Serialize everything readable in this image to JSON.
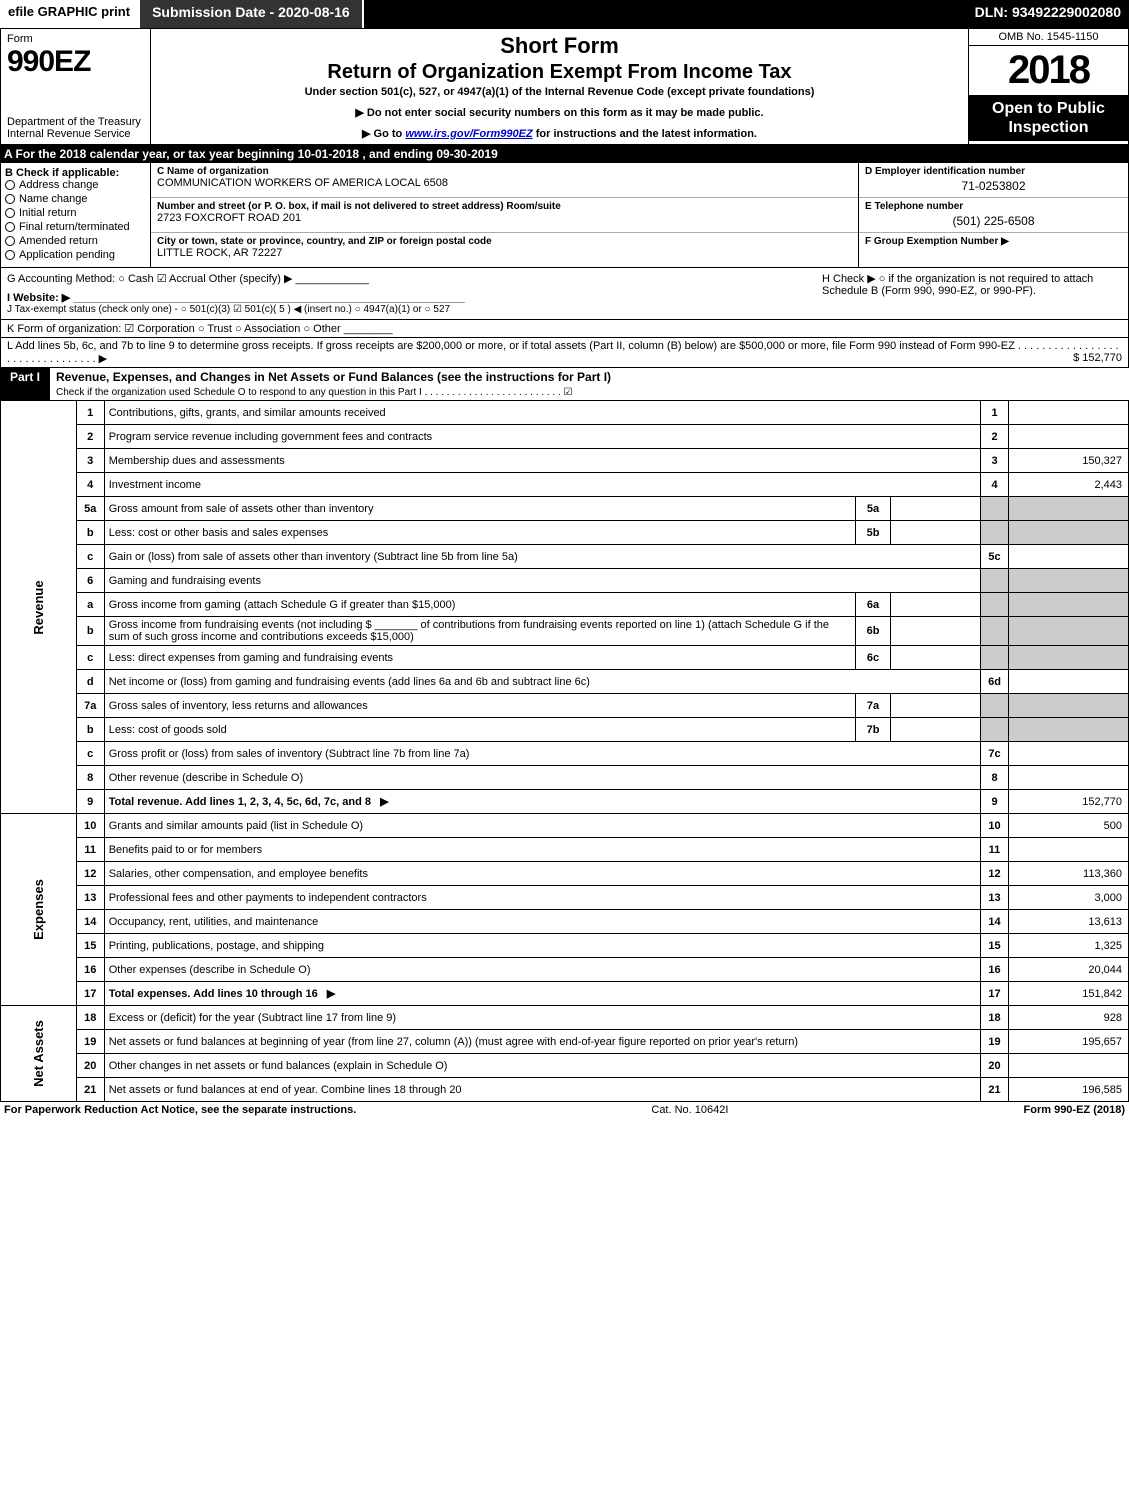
{
  "topbar": {
    "efile": "efile GRAPHIC print",
    "subdate": "Submission Date - 2020-08-16",
    "dln": "DLN: 93492229002080"
  },
  "header": {
    "form": "Form",
    "formno": "990EZ",
    "dept": "Department of the Treasury\nInternal Revenue Service",
    "short": "Short Form",
    "return": "Return of Organization Exempt From Income Tax",
    "under": "Under section 501(c), 527, or 4947(a)(1) of the Internal Revenue Code (except private foundations)",
    "note1": "▶ Do not enter social security numbers on this form as it may be made public.",
    "note2_a": "▶ Go to ",
    "note2_link": "www.irs.gov/Form990EZ",
    "note2_b": " for instructions and the latest information.",
    "omb": "OMB No. 1545-1150",
    "year": "2018",
    "open": "Open to Public Inspection"
  },
  "period": "A  For the 2018 calendar year, or tax year beginning 10-01-2018            , and ending 09-30-2019",
  "sectionB": {
    "title": "B  Check if applicable:",
    "items": [
      "Address change",
      "Name change",
      "Initial return",
      "Final return/terminated",
      "Amended return",
      "Application pending"
    ]
  },
  "sectionC": {
    "lblName": "C Name of organization",
    "name": "COMMUNICATION WORKERS OF AMERICA LOCAL 6508",
    "lblAddr": "Number and street (or P. O. box, if mail is not delivered to street address)        Room/suite",
    "addr": "2723 FOXCROFT ROAD 201",
    "lblCity": "City or town, state or province, country, and ZIP or foreign postal code",
    "city": "LITTLE ROCK, AR  72227"
  },
  "sectionD": {
    "lbl": "D Employer identification number",
    "val": "71-0253802"
  },
  "sectionE": {
    "lbl": "E Telephone number",
    "val": "(501) 225-6508"
  },
  "sectionF": {
    "lbl": "F Group Exemption Number  ▶",
    "val": ""
  },
  "lineG": "G Accounting Method:   ○ Cash   ☑ Accrual   Other (specify) ▶ ____________",
  "lineH": "H   Check ▶  ○  if the organization is not required to attach Schedule B (Form 990, 990-EZ, or 990-PF).",
  "lineI": "I Website: ▶ ________________________________________________________________",
  "lineJ": "J Tax-exempt status (check only one) -  ○ 501(c)(3)  ☑ 501(c)( 5 ) ◀ (insert no.)  ○ 4947(a)(1) or  ○ 527",
  "lineK": "K Form of organization:   ☑ Corporation   ○ Trust   ○ Association   ○ Other ________",
  "lineL": {
    "text": "L Add lines 5b, 6c, and 7b to line 9 to determine gross receipts. If gross receipts are $200,000 or more, or if total assets (Part II, column (B) below) are $500,000 or more, file Form 990 instead of Form 990-EZ  . . . . . . . . . . . . . . . . . . . . . . . . . . . . . . . .  ▶",
    "amount": "$ 152,770"
  },
  "part1": {
    "tag": "Part I",
    "title": "Revenue, Expenses, and Changes in Net Assets or Fund Balances (see the instructions for Part I)",
    "sub": "Check if the organization used Schedule O to respond to any question in this Part I . . . . . . . . . . . . . . . . . . . . . . . . . ☑"
  },
  "sections": {
    "revenue": "Revenue",
    "expenses": "Expenses",
    "netassets": "Net Assets"
  },
  "rows": [
    {
      "n": "1",
      "t": "Contributions, gifts, grants, and similar amounts received",
      "box": "1",
      "amt": ""
    },
    {
      "n": "2",
      "t": "Program service revenue including government fees and contracts",
      "box": "2",
      "amt": ""
    },
    {
      "n": "3",
      "t": "Membership dues and assessments",
      "box": "3",
      "amt": "150,327"
    },
    {
      "n": "4",
      "t": "Investment income",
      "box": "4",
      "amt": "2,443"
    },
    {
      "n": "5a",
      "t": "Gross amount from sale of assets other than inventory",
      "sub": "5a",
      "subamt": ""
    },
    {
      "n": "b",
      "t": "Less: cost or other basis and sales expenses",
      "sub": "5b",
      "subamt": ""
    },
    {
      "n": "c",
      "t": "Gain or (loss) from sale of assets other than inventory (Subtract line 5b from line 5a)",
      "box": "5c",
      "amt": ""
    },
    {
      "n": "6",
      "t": "Gaming and fundraising events",
      "head": true
    },
    {
      "n": "a",
      "t": "Gross income from gaming (attach Schedule G if greater than $15,000)",
      "sub": "6a",
      "subamt": ""
    },
    {
      "n": "b",
      "t": "Gross income from fundraising events (not including $ _______ of contributions from fundraising events reported on line 1) (attach Schedule G if the sum of such gross income and contributions exceeds $15,000)",
      "sub": "6b",
      "subamt": ""
    },
    {
      "n": "c",
      "t": "Less: direct expenses from gaming and fundraising events",
      "sub": "6c",
      "subamt": ""
    },
    {
      "n": "d",
      "t": "Net income or (loss) from gaming and fundraising events (add lines 6a and 6b and subtract line 6c)",
      "box": "6d",
      "amt": ""
    },
    {
      "n": "7a",
      "t": "Gross sales of inventory, less returns and allowances",
      "sub": "7a",
      "subamt": ""
    },
    {
      "n": "b",
      "t": "Less: cost of goods sold",
      "sub": "7b",
      "subamt": ""
    },
    {
      "n": "c",
      "t": "Gross profit or (loss) from sales of inventory (Subtract line 7b from line 7a)",
      "box": "7c",
      "amt": ""
    },
    {
      "n": "8",
      "t": "Other revenue (describe in Schedule O)",
      "box": "8",
      "amt": ""
    },
    {
      "n": "9",
      "t": "Total revenue. Add lines 1, 2, 3, 4, 5c, 6d, 7c, and 8",
      "box": "9",
      "amt": "152,770",
      "bold": true,
      "arrow": true
    },
    {
      "n": "10",
      "t": "Grants and similar amounts paid (list in Schedule O)",
      "box": "10",
      "amt": "500"
    },
    {
      "n": "11",
      "t": "Benefits paid to or for members",
      "box": "11",
      "amt": ""
    },
    {
      "n": "12",
      "t": "Salaries, other compensation, and employee benefits",
      "box": "12",
      "amt": "113,360"
    },
    {
      "n": "13",
      "t": "Professional fees and other payments to independent contractors",
      "box": "13",
      "amt": "3,000"
    },
    {
      "n": "14",
      "t": "Occupancy, rent, utilities, and maintenance",
      "box": "14",
      "amt": "13,613"
    },
    {
      "n": "15",
      "t": "Printing, publications, postage, and shipping",
      "box": "15",
      "amt": "1,325"
    },
    {
      "n": "16",
      "t": "Other expenses (describe in Schedule O)",
      "box": "16",
      "amt": "20,044"
    },
    {
      "n": "17",
      "t": "Total expenses. Add lines 10 through 16",
      "box": "17",
      "amt": "151,842",
      "bold": true,
      "arrow": true
    },
    {
      "n": "18",
      "t": "Excess or (deficit) for the year (Subtract line 17 from line 9)",
      "box": "18",
      "amt": "928"
    },
    {
      "n": "19",
      "t": "Net assets or fund balances at beginning of year (from line 27, column (A)) (must agree with end-of-year figure reported on prior year's return)",
      "box": "19",
      "amt": "195,657"
    },
    {
      "n": "20",
      "t": "Other changes in net assets or fund balances (explain in Schedule O)",
      "box": "20",
      "amt": ""
    },
    {
      "n": "21",
      "t": "Net assets or fund balances at end of year. Combine lines 18 through 20",
      "box": "21",
      "amt": "196,585"
    }
  ],
  "footer": {
    "left": "For Paperwork Reduction Act Notice, see the separate instructions.",
    "mid": "Cat. No. 10642I",
    "right": "Form 990-EZ (2018)"
  }
}
